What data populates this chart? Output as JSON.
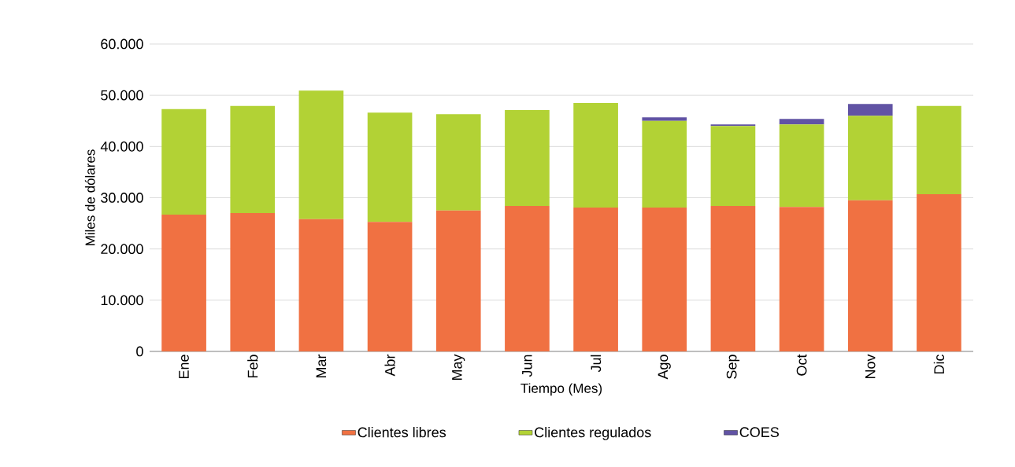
{
  "chart_data": {
    "type": "bar",
    "stacked": true,
    "xlabel": "Tiempo (Mes)",
    "ylabel": "Miles de dólares",
    "categories": [
      "Ene",
      "Feb",
      "Mar",
      "Abr",
      "May",
      "Jun",
      "Jul",
      "Ago",
      "Sep",
      "Oct",
      "Nov",
      "Dic"
    ],
    "series": [
      {
        "name": "Clientes libres",
        "color": "#f07142",
        "values": [
          26700,
          27000,
          25800,
          25300,
          27500,
          28400,
          28100,
          28100,
          28400,
          28200,
          29500,
          30700
        ]
      },
      {
        "name": "Clientes regulados",
        "color": "#b2d235",
        "values": [
          20600,
          20900,
          25100,
          21300,
          18800,
          18700,
          20400,
          16900,
          15600,
          16100,
          16500,
          17200
        ]
      },
      {
        "name": "COES",
        "color": "#6153a4",
        "values": [
          0,
          0,
          0,
          0,
          0,
          0,
          0,
          700,
          300,
          1100,
          2300,
          0
        ]
      }
    ],
    "ylim": [
      0,
      60000
    ],
    "yticks": [
      {
        "value": 0,
        "label": "0"
      },
      {
        "value": 10000,
        "label": "10.000"
      },
      {
        "value": 20000,
        "label": "20.000"
      },
      {
        "value": 30000,
        "label": "30.000"
      },
      {
        "value": 40000,
        "label": "40.000"
      },
      {
        "value": 50000,
        "label": "50.000"
      },
      {
        "value": 60000,
        "label": "60.000"
      }
    ],
    "grid": "y",
    "legend": "bottom"
  }
}
